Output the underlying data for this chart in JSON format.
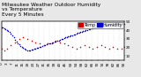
{
  "title": "Milwaukee Weather Outdoor Humidity",
  "subtitle": "vs Temperature",
  "subtitle2": "Every 5 Minutes",
  "bg_color": "#e8e8e8",
  "plot_bg": "#ffffff",
  "grid_color": "#aaaaaa",
  "blue_color": "#0000cc",
  "red_color": "#cc0000",
  "blue_x": [
    0,
    1,
    2,
    3,
    4,
    5,
    6,
    7,
    8,
    9,
    10,
    11,
    12,
    13,
    14,
    15,
    16,
    17,
    18,
    19,
    20,
    21,
    22,
    23,
    24,
    25,
    26,
    27,
    28,
    29,
    30,
    31,
    32,
    33,
    34,
    35,
    36,
    37,
    38,
    39,
    40,
    41,
    42,
    43,
    44,
    45,
    46,
    47,
    48,
    49,
    50,
    51,
    52,
    53,
    54,
    55,
    56,
    57,
    58,
    59,
    60,
    61,
    62,
    63,
    64,
    65,
    66,
    67,
    68,
    69,
    70,
    71,
    72,
    73,
    74,
    75,
    76,
    77,
    78,
    79,
    80,
    81,
    82,
    83,
    84,
    85,
    86,
    87,
    88,
    89,
    90
  ],
  "blue_y": [
    78,
    78,
    77,
    76,
    75,
    74,
    73,
    71,
    69,
    67,
    64,
    62,
    60,
    58,
    56,
    55,
    54,
    53,
    52,
    51,
    51,
    51,
    52,
    52,
    53,
    53,
    54,
    54,
    55,
    55,
    56,
    57,
    57,
    58,
    59,
    59,
    60,
    60,
    61,
    62,
    62,
    63,
    63,
    64,
    65,
    65,
    66,
    67,
    67,
    68,
    68,
    69,
    69,
    70,
    70,
    71,
    72,
    72,
    73,
    73,
    74,
    74,
    75,
    75,
    76,
    76,
    77,
    77,
    78,
    78,
    79,
    79,
    79,
    80,
    80,
    80,
    81,
    81,
    81,
    81,
    81,
    81,
    81,
    82,
    82,
    82,
    82,
    82,
    82,
    82,
    82
  ],
  "red_x": [
    0,
    2,
    4,
    7,
    10,
    13,
    16,
    19,
    22,
    25,
    28,
    31,
    34,
    37,
    40,
    43,
    46,
    49,
    52,
    55,
    58,
    61,
    64,
    67,
    70,
    73,
    76,
    79,
    82,
    85,
    88,
    90
  ],
  "red_y": [
    18,
    16,
    18,
    22,
    26,
    30,
    32,
    30,
    28,
    26,
    24,
    22,
    24,
    26,
    28,
    26,
    24,
    22,
    20,
    18,
    20,
    22,
    20,
    18,
    20,
    22,
    20,
    18,
    20,
    18,
    18,
    20
  ],
  "xlim": [
    0,
    90
  ],
  "ylim_left": [
    40,
    85
  ],
  "ylim_right": [
    5,
    50
  ],
  "yticks_right": [
    10,
    20,
    30,
    40,
    50
  ],
  "legend_blue": "Humidity",
  "legend_red": "Temp",
  "n_xticks": 24,
  "marker_size": 1.2,
  "title_fontsize": 4.2,
  "tick_fontsize": 3.0,
  "legend_fontsize": 3.5
}
